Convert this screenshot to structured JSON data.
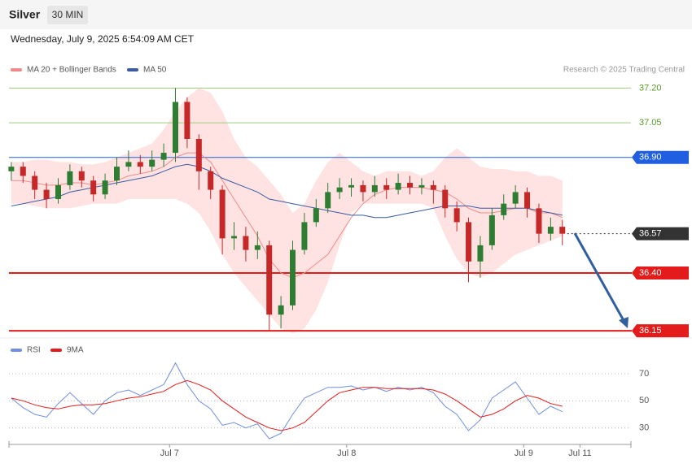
{
  "header": {
    "symbol": "Silver",
    "interval": "30 MIN",
    "timestamp": "Wednesday, July 9, 2025 6:54:09 AM CET",
    "credit": "Research © 2025 Trading Central"
  },
  "chart_data": [
    {
      "type": "candlestick",
      "up_color": "#2e7d32",
      "down_color": "#c62828",
      "xlim": [
        -0.2,
        52.85
      ],
      "ylim": [
        36.14,
        37.24
      ],
      "candles": [
        [
          36.84,
          36.88,
          36.8,
          36.86
        ],
        [
          36.86,
          36.88,
          36.79,
          36.82
        ],
        [
          36.82,
          36.84,
          36.72,
          36.76
        ],
        [
          36.76,
          36.79,
          36.68,
          36.72
        ],
        [
          36.72,
          36.81,
          36.7,
          36.78
        ],
        [
          36.78,
          36.87,
          36.76,
          36.84
        ],
        [
          36.84,
          36.86,
          36.77,
          36.8
        ],
        [
          36.8,
          36.82,
          36.71,
          36.74
        ],
        [
          36.74,
          36.83,
          36.72,
          36.8
        ],
        [
          36.8,
          36.9,
          36.78,
          36.86
        ],
        [
          36.86,
          36.93,
          36.84,
          36.88
        ],
        [
          36.88,
          36.91,
          36.83,
          36.86
        ],
        [
          36.86,
          36.93,
          36.84,
          36.89
        ],
        [
          36.89,
          36.96,
          36.86,
          36.92
        ],
        [
          36.92,
          37.2,
          36.88,
          37.14
        ],
        [
          37.14,
          37.16,
          36.94,
          36.98
        ],
        [
          36.98,
          37.0,
          36.76,
          36.84
        ],
        [
          36.84,
          36.86,
          36.72,
          36.76
        ],
        [
          36.76,
          36.78,
          36.48,
          36.55
        ],
        [
          36.55,
          36.62,
          36.5,
          36.56
        ],
        [
          36.56,
          36.6,
          36.45,
          36.5
        ],
        [
          36.5,
          36.58,
          36.46,
          36.52
        ],
        [
          36.52,
          36.54,
          36.15,
          36.22
        ],
        [
          36.22,
          36.3,
          36.16,
          36.26
        ],
        [
          36.26,
          36.54,
          36.24,
          36.5
        ],
        [
          36.5,
          36.66,
          36.48,
          36.62
        ],
        [
          36.62,
          36.72,
          36.6,
          36.68
        ],
        [
          36.68,
          36.79,
          36.66,
          36.75
        ],
        [
          36.75,
          36.81,
          36.72,
          36.77
        ],
        [
          36.77,
          36.81,
          36.73,
          36.78
        ],
        [
          36.78,
          36.8,
          36.71,
          36.75
        ],
        [
          36.75,
          36.82,
          36.73,
          36.78
        ],
        [
          36.78,
          36.81,
          36.72,
          36.76
        ],
        [
          36.76,
          36.83,
          36.74,
          36.79
        ],
        [
          36.79,
          36.82,
          36.74,
          36.77
        ],
        [
          36.77,
          36.81,
          36.74,
          36.78
        ],
        [
          36.78,
          36.8,
          36.7,
          36.76
        ],
        [
          36.76,
          36.78,
          36.64,
          36.68
        ],
        [
          36.68,
          36.71,
          36.58,
          36.62
        ],
        [
          36.62,
          36.64,
          36.36,
          36.45
        ],
        [
          36.45,
          36.56,
          36.38,
          36.52
        ],
        [
          36.52,
          36.68,
          36.5,
          36.65
        ],
        [
          36.65,
          36.74,
          36.63,
          36.7
        ],
        [
          36.7,
          36.78,
          36.68,
          36.75
        ],
        [
          36.75,
          36.77,
          36.64,
          36.68
        ],
        [
          36.68,
          36.7,
          36.53,
          36.57
        ],
        [
          36.57,
          36.64,
          36.54,
          36.6
        ],
        [
          36.6,
          36.63,
          36.52,
          36.57
        ]
      ],
      "series": [
        {
          "name": "MA 20 + Bollinger Bands",
          "color": "#f08a8a",
          "band_color": "#ffdede",
          "values": [
            36.8,
            36.8,
            36.79,
            36.78,
            36.78,
            36.79,
            36.79,
            36.78,
            36.79,
            36.8,
            36.82,
            36.83,
            36.84,
            36.86,
            36.9,
            36.92,
            36.92,
            36.88,
            36.8,
            36.72,
            36.64,
            36.56,
            36.46,
            36.4,
            36.38,
            36.4,
            36.44,
            36.48,
            36.56,
            36.64,
            36.7,
            36.74,
            36.76,
            36.77,
            36.77,
            36.77,
            36.76,
            36.75,
            36.72,
            36.68,
            36.66,
            36.66,
            36.67,
            36.68,
            36.68,
            36.66,
            36.66,
            36.64
          ],
          "upper": [
            36.88,
            36.88,
            36.89,
            36.89,
            36.88,
            36.88,
            36.87,
            36.87,
            36.88,
            36.9,
            36.92,
            36.94,
            36.96,
            37.02,
            37.1,
            37.16,
            37.2,
            37.18,
            37.1,
            36.98,
            36.9,
            36.86,
            36.8,
            36.74,
            36.66,
            36.7,
            36.8,
            36.88,
            36.92,
            36.88,
            36.84,
            36.82,
            36.84,
            36.84,
            36.84,
            36.82,
            36.84,
            36.9,
            36.94,
            36.9,
            36.86,
            36.85,
            36.85,
            36.84,
            36.84,
            36.82,
            36.82,
            36.8
          ],
          "lower": [
            36.7,
            36.7,
            36.69,
            36.68,
            36.68,
            36.68,
            36.69,
            36.7,
            36.7,
            36.7,
            36.72,
            36.72,
            36.72,
            36.72,
            36.72,
            36.7,
            36.66,
            36.58,
            36.48,
            36.4,
            36.34,
            36.28,
            36.22,
            36.16,
            36.14,
            36.16,
            36.24,
            36.36,
            36.52,
            36.66,
            36.7,
            36.7,
            36.7,
            36.7,
            36.7,
            36.7,
            36.68,
            36.56,
            36.46,
            36.4,
            36.38,
            36.4,
            36.44,
            36.48,
            36.5,
            36.52,
            36.54,
            36.56
          ]
        },
        {
          "name": "MA 50",
          "color": "#3b5aa0",
          "values": [
            36.69,
            36.7,
            36.71,
            36.72,
            36.73,
            36.75,
            36.76,
            36.77,
            36.78,
            36.79,
            36.8,
            36.81,
            36.82,
            36.84,
            36.86,
            36.87,
            36.86,
            36.84,
            36.81,
            36.79,
            36.77,
            36.75,
            36.72,
            36.71,
            36.7,
            36.69,
            36.68,
            36.67,
            36.66,
            36.65,
            36.65,
            36.64,
            36.64,
            36.65,
            36.66,
            36.67,
            36.68,
            36.69,
            36.69,
            36.69,
            36.68,
            36.68,
            36.68,
            36.68,
            36.68,
            36.67,
            36.66,
            36.65
          ]
        }
      ],
      "levels": [
        {
          "value": 37.2,
          "label": "37.20",
          "color": "#9ccc7a",
          "box": false
        },
        {
          "value": 37.05,
          "label": "37.05",
          "color": "#9ccc7a",
          "box": false
        },
        {
          "value": 36.9,
          "label": "36.90",
          "color": "#1f5fe0",
          "box": true
        },
        {
          "value": 36.57,
          "label": "36.57",
          "color": "#333333",
          "box": true,
          "dotted": true
        },
        {
          "value": 36.4,
          "label": "36.40",
          "color": "#e31b1b",
          "box": true
        },
        {
          "value": 36.15,
          "label": "36.15",
          "color": "#e31b1b",
          "box": true
        }
      ]
    },
    {
      "type": "line",
      "xlim": [
        -0.2,
        52.85
      ],
      "ylim": [
        19,
        94
      ],
      "yticks": [
        30,
        50,
        70
      ],
      "grid": "dotted",
      "xticks": [
        {
          "value": 13.5,
          "label": "Jul 7"
        },
        {
          "value": 28.6,
          "label": "Jul 8"
        },
        {
          "value": 43.7,
          "label": "Jul 9"
        },
        {
          "value": 48.5,
          "label": "Jul 11"
        }
      ],
      "series": [
        {
          "name": "RSI",
          "color": "#6f8fe0",
          "values": [
            52,
            45,
            40,
            38,
            48,
            56,
            48,
            40,
            50,
            56,
            58,
            54,
            58,
            62,
            78,
            62,
            50,
            44,
            32,
            34,
            30,
            33,
            22,
            26,
            40,
            52,
            56,
            60,
            60,
            61,
            58,
            60,
            57,
            60,
            58,
            60,
            56,
            46,
            40,
            28,
            36,
            52,
            58,
            64,
            52,
            40,
            46,
            42
          ]
        },
        {
          "name": "9MA",
          "color": "#e31b1b",
          "values": [
            52,
            50,
            47,
            45,
            44,
            46,
            47,
            47,
            48,
            50,
            52,
            53,
            55,
            57,
            62,
            65,
            62,
            58,
            50,
            44,
            38,
            34,
            30,
            28,
            30,
            34,
            42,
            50,
            56,
            58,
            60,
            60,
            59,
            59,
            59,
            59,
            58,
            55,
            50,
            44,
            38,
            40,
            44,
            50,
            54,
            52,
            48,
            46
          ]
        }
      ]
    }
  ]
}
